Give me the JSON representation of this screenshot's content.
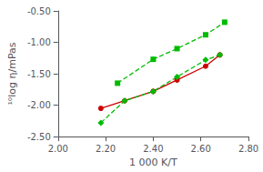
{
  "chart_data": {
    "type": "line",
    "xlabel": "1 000 K/T",
    "ylabel": "¹⁰log η/mPas",
    "xlim": [
      2.0,
      2.8
    ],
    "ylim": [
      -2.5,
      -0.5
    ],
    "xticks": [
      {
        "value": 2.0,
        "label": "2.00"
      },
      {
        "value": 2.2,
        "label": "2.20"
      },
      {
        "value": 2.4,
        "label": "2.40"
      },
      {
        "value": 2.6,
        "label": "2.60"
      },
      {
        "value": 2.8,
        "label": "2.80"
      }
    ],
    "yticks": [
      {
        "value": -2.5,
        "label": "-2.50"
      },
      {
        "value": -2.0,
        "label": "-2.00"
      },
      {
        "value": -1.5,
        "label": "-1.50"
      },
      {
        "value": -1.0,
        "label": "-1.00"
      },
      {
        "value": -0.5,
        "label": "-0.50"
      }
    ],
    "grid": false,
    "series": [
      {
        "color": "#cc0000",
        "marker": "circle",
        "line_style": "solid",
        "x": [
          2.18,
          2.28,
          2.4,
          2.5,
          2.62,
          2.68
        ],
        "values": [
          -2.05,
          -1.93,
          -1.78,
          -1.6,
          -1.38,
          -1.2
        ]
      },
      {
        "color": "#00bb00",
        "marker": "square",
        "line_style": "dashed",
        "x": [
          2.25,
          2.4,
          2.5,
          2.62,
          2.7
        ],
        "values": [
          -1.65,
          -1.27,
          -1.1,
          -0.88,
          -0.68
        ]
      },
      {
        "color": "#00bb00",
        "marker": "diamond",
        "line_style": "dashed",
        "x": [
          2.18,
          2.28,
          2.4,
          2.5,
          2.62,
          2.68
        ],
        "values": [
          -2.28,
          -1.93,
          -1.78,
          -1.55,
          -1.28,
          -1.2
        ]
      }
    ]
  }
}
